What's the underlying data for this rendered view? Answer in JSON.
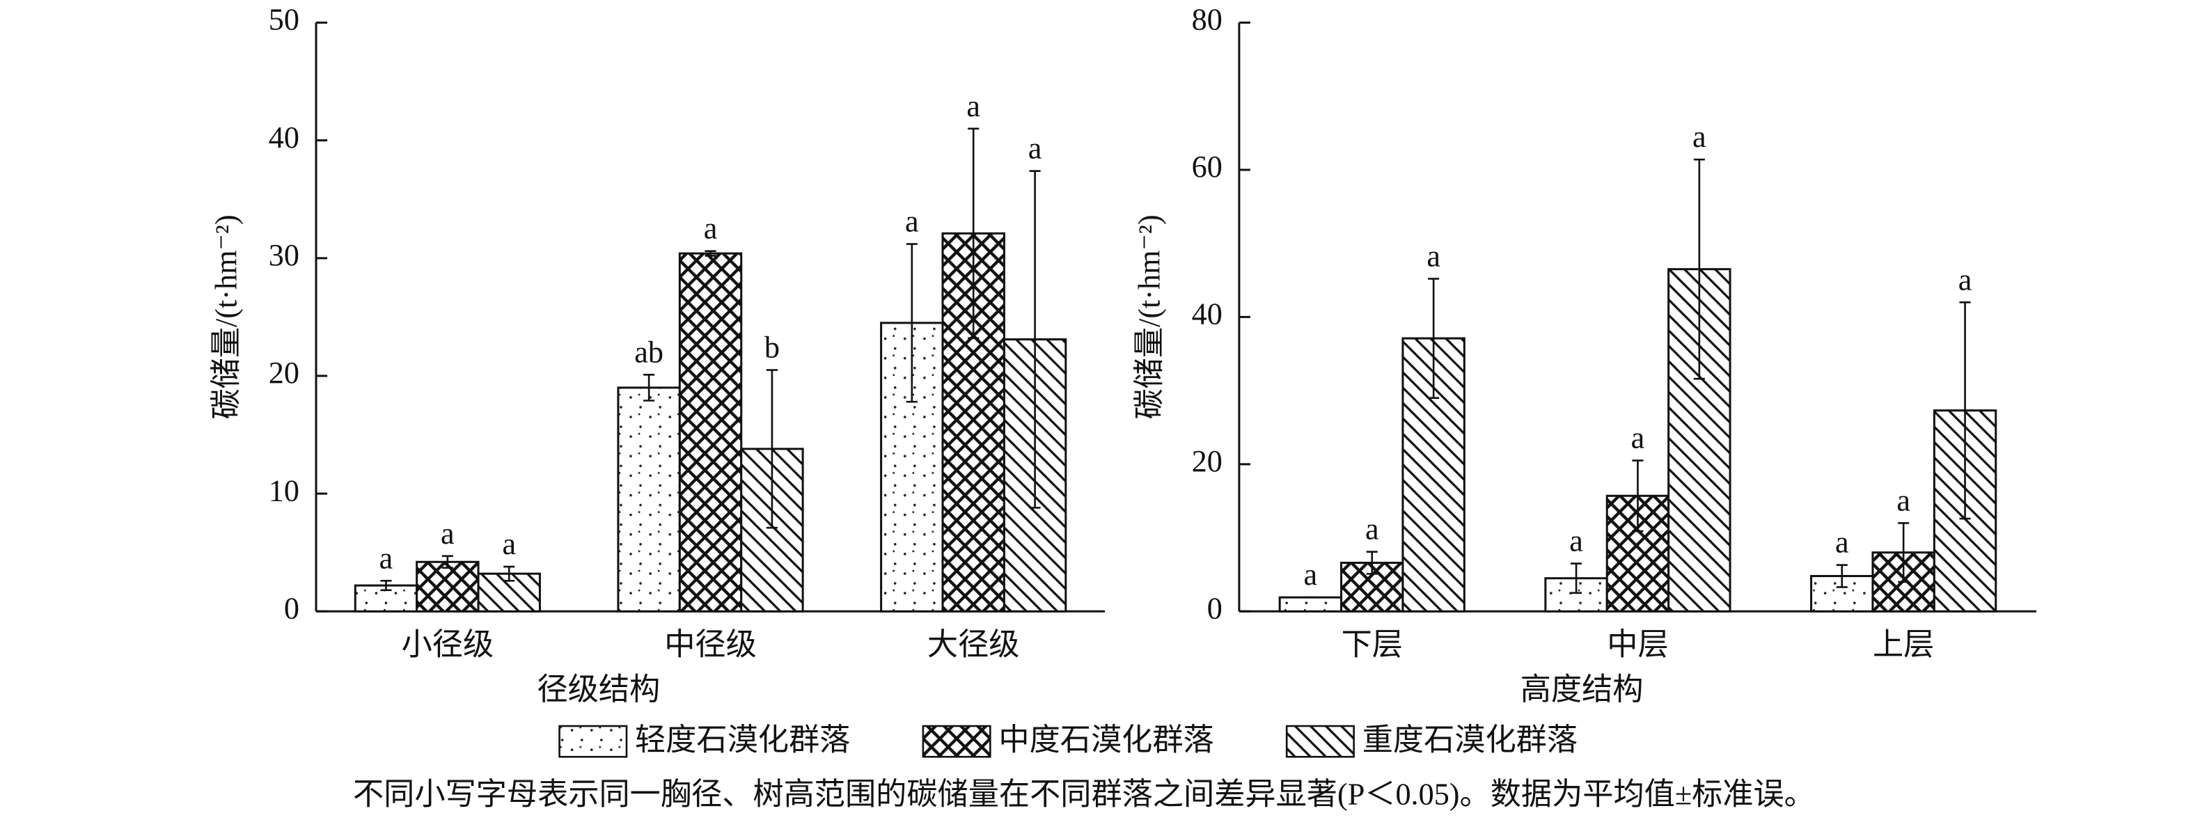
{
  "chart_data": [
    {
      "type": "bar",
      "x_label": "径级结构",
      "y_label": "碳储量/(t·hm⁻²)",
      "categories": [
        "小径级",
        "中径级",
        "大径级"
      ],
      "ylim": [
        0,
        50
      ],
      "yticks": [
        0,
        10,
        20,
        30,
        40,
        50
      ],
      "series": [
        {
          "name": "轻度石漠化群落",
          "color": "dots",
          "values": [
            2.2,
            19,
            24.5
          ],
          "errors": [
            0.4,
            1.1,
            6.7
          ],
          "letters": [
            "a",
            "ab",
            "a"
          ]
        },
        {
          "name": "中度石漠化群落",
          "color": "crosshatch",
          "values": [
            4.2,
            30.4,
            32.1
          ],
          "errors": [
            0.5,
            0.2,
            8.9
          ],
          "letters": [
            "a",
            "a",
            "a"
          ]
        },
        {
          "name": "重度石漠化群落",
          "color": "diagonal",
          "values": [
            3.2,
            13.8,
            23.1
          ],
          "errors": [
            0.6,
            6.7,
            14.3
          ],
          "letters": [
            "a",
            "b",
            "a"
          ]
        }
      ]
    },
    {
      "type": "bar",
      "x_label": "高度结构",
      "y_label": "碳储量/(t·hm⁻²)",
      "categories": [
        "下层",
        "中层",
        "上层"
      ],
      "ylim": [
        0,
        80
      ],
      "yticks": [
        0,
        20,
        40,
        60,
        80
      ],
      "series": [
        {
          "color": "dots",
          "values": [
            1.9,
            4.5,
            4.8
          ],
          "errors": [
            0,
            2,
            1.5
          ],
          "letters": [
            "a",
            "a",
            "a"
          ]
        },
        {
          "color": "crosshatch",
          "values": [
            6.6,
            15.7,
            8
          ],
          "errors": [
            1.5,
            4.8,
            4
          ],
          "letters": [
            "a",
            "a",
            "a"
          ]
        },
        {
          "color": "diagonal",
          "values": [
            37.1,
            46.5,
            27.3
          ],
          "errors": [
            8.1,
            14.9,
            14.7
          ],
          "letters": [
            "a",
            "a",
            "a"
          ]
        }
      ]
    }
  ],
  "note": "不同小写字母表示同一胸径、树高范围的碳储量在不同群落之间差异显著(P＜0.05)。数据为平均值±标准误。"
}
